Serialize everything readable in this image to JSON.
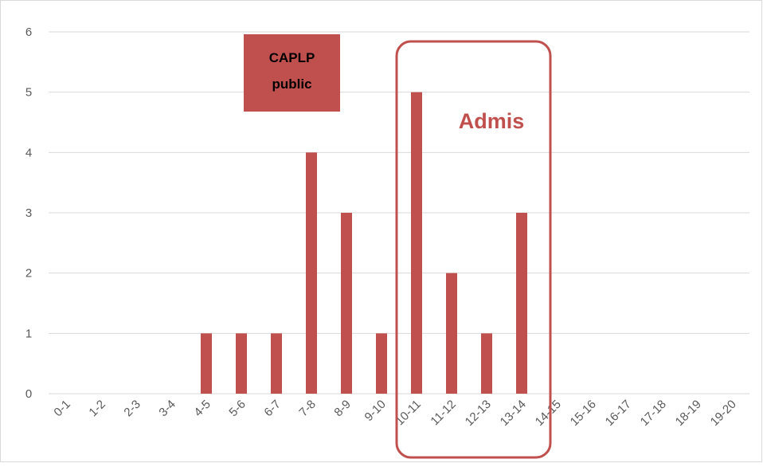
{
  "chart_data": {
    "type": "bar",
    "categories": [
      "0-1",
      "1-2",
      "2-3",
      "3-4",
      "4-5",
      "5-6",
      "6-7",
      "7-8",
      "8-9",
      "9-10",
      "10-11",
      "11-12",
      "12-13",
      "13-14",
      "14-15",
      "15-16",
      "16-17",
      "17-18",
      "18-19",
      "19-20"
    ],
    "values": [
      0,
      0,
      0,
      0,
      1,
      1,
      1,
      4,
      3,
      1,
      5,
      2,
      1,
      3,
      0,
      0,
      0,
      0,
      0,
      0
    ],
    "color": "#c0504d",
    "ylim": [
      0,
      6
    ],
    "yticks": [
      0,
      1,
      2,
      3,
      4,
      5,
      6
    ],
    "grid": true,
    "annotations": [
      {
        "lines": [
          "CAPLP",
          "public"
        ]
      },
      {
        "lines": [
          "Admis"
        ]
      }
    ]
  }
}
